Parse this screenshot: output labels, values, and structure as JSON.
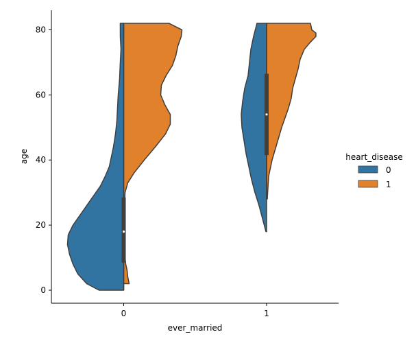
{
  "chart_data": {
    "type": "violin",
    "split": true,
    "xlabel": "ever_married",
    "ylabel": "age",
    "categories": [
      "0",
      "1"
    ],
    "ylim": [
      -4,
      86
    ],
    "yticks": [
      0,
      20,
      40,
      60,
      80
    ],
    "grid": false,
    "legend": {
      "title": "heart_disease",
      "placement": "right",
      "entries": [
        {
          "label": "0",
          "color": "#3274a1"
        },
        {
          "label": "1",
          "color": "#e1812c"
        }
      ]
    },
    "series": [
      {
        "name": "0",
        "color": "#3274a1",
        "side": "left",
        "violins": [
          {
            "category": "0",
            "profile": [
              [
                0,
                0.36
              ],
              [
                2,
                0.54
              ],
              [
                5,
                0.67
              ],
              [
                8,
                0.74
              ],
              [
                11,
                0.79
              ],
              [
                14,
                0.82
              ],
              [
                17,
                0.81
              ],
              [
                20,
                0.74
              ],
              [
                23,
                0.64
              ],
              [
                26,
                0.54
              ],
              [
                29,
                0.44
              ],
              [
                32,
                0.34
              ],
              [
                35,
                0.27
              ],
              [
                38,
                0.21
              ],
              [
                41,
                0.18
              ],
              [
                44,
                0.15
              ],
              [
                48,
                0.12
              ],
              [
                52,
                0.1
              ],
              [
                56,
                0.09
              ],
              [
                60,
                0.08
              ],
              [
                65,
                0.06
              ],
              [
                70,
                0.05
              ],
              [
                74,
                0.04
              ],
              [
                78,
                0.05
              ],
              [
                82,
                0.05
              ]
            ]
          },
          {
            "category": "1",
            "profile": [
              [
                18,
                0.01
              ],
              [
                22,
                0.06
              ],
              [
                26,
                0.11
              ],
              [
                30,
                0.17
              ],
              [
                34,
                0.22
              ],
              [
                38,
                0.26
              ],
              [
                42,
                0.3
              ],
              [
                46,
                0.33
              ],
              [
                50,
                0.36
              ],
              [
                54,
                0.37
              ],
              [
                58,
                0.35
              ],
              [
                62,
                0.32
              ],
              [
                66,
                0.27
              ],
              [
                70,
                0.25
              ],
              [
                74,
                0.23
              ],
              [
                78,
                0.19
              ],
              [
                82,
                0.14
              ]
            ]
          }
        ]
      },
      {
        "name": "1",
        "color": "#e1812c",
        "side": "right",
        "violins": [
          {
            "category": "0",
            "profile": [
              [
                2,
                0.08
              ],
              [
                4,
                0.06
              ],
              [
                6,
                0.05
              ],
              [
                8,
                0.03
              ],
              [
                10,
                0.02
              ],
              [
                15,
                0.01
              ],
              [
                25,
                0.01
              ],
              [
                30,
                0.02
              ],
              [
                33,
                0.06
              ],
              [
                36,
                0.15
              ],
              [
                40,
                0.3
              ],
              [
                44,
                0.46
              ],
              [
                48,
                0.61
              ],
              [
                51,
                0.68
              ],
              [
                54,
                0.68
              ],
              [
                57,
                0.6
              ],
              [
                60,
                0.54
              ],
              [
                63,
                0.55
              ],
              [
                66,
                0.62
              ],
              [
                69,
                0.71
              ],
              [
                72,
                0.76
              ],
              [
                75,
                0.79
              ],
              [
                78,
                0.84
              ],
              [
                80,
                0.85
              ],
              [
                82,
                0.66
              ]
            ]
          },
          {
            "category": "1",
            "profile": [
              [
                28,
                0.01
              ],
              [
                35,
                0.03
              ],
              [
                40,
                0.08
              ],
              [
                45,
                0.15
              ],
              [
                50,
                0.22
              ],
              [
                53,
                0.27
              ],
              [
                56,
                0.32
              ],
              [
                59,
                0.36
              ],
              [
                62,
                0.38
              ],
              [
                65,
                0.42
              ],
              [
                68,
                0.46
              ],
              [
                71,
                0.49
              ],
              [
                74,
                0.55
              ],
              [
                76,
                0.63
              ],
              [
                78,
                0.72
              ],
              [
                79,
                0.72
              ],
              [
                80,
                0.66
              ],
              [
                82,
                0.64
              ]
            ]
          }
        ]
      }
    ],
    "boxes": [
      {
        "category": "0",
        "q1": 8.5,
        "q3": 28.5,
        "median": 18,
        "whisker_low": 0,
        "whisker_high": 82
      },
      {
        "category": "1",
        "q1": 41.5,
        "q3": 66.5,
        "median": 54,
        "whisker_low": 28,
        "whisker_high": 82
      }
    ],
    "line_color": "#3f3f3f"
  }
}
